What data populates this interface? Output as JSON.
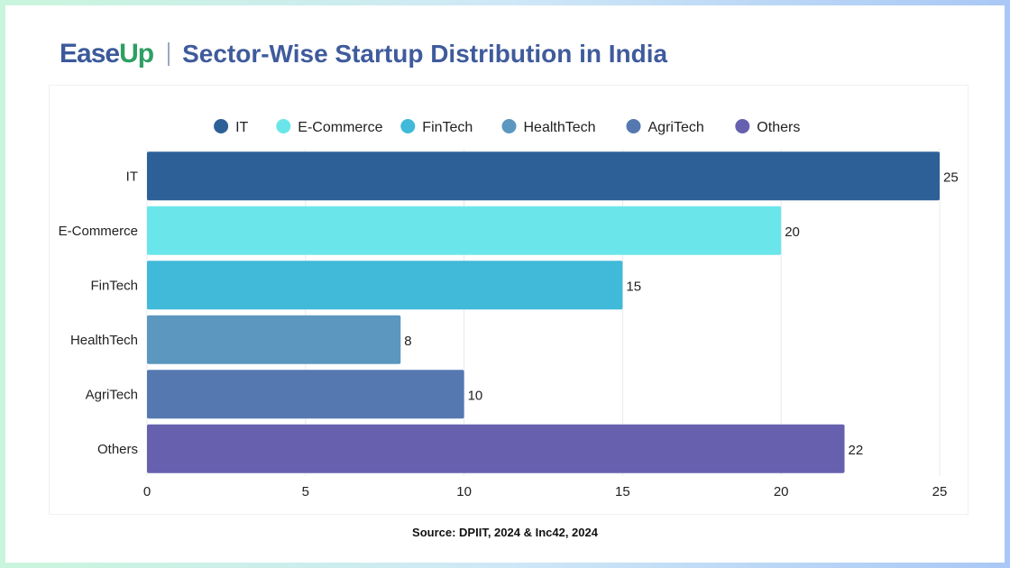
{
  "brand": {
    "logo_part1": "Ease",
    "logo_part2": "Up",
    "logo_color1": "#3b5a9a",
    "logo_color2": "#2e9f63"
  },
  "header": {
    "title": "Sector-Wise Startup Distribution in India"
  },
  "source": "Source: DPIIT, 2024 & Inc42, 2024",
  "chart_data": {
    "type": "bar",
    "orientation": "horizontal",
    "categories": [
      "IT",
      "E-Commerce",
      "FinTech",
      "HealthTech",
      "AgriTech",
      "Others"
    ],
    "values": [
      25,
      20,
      15,
      8,
      10,
      22
    ],
    "colors": [
      "#2e6098",
      "#6ae6ea",
      "#41b9d8",
      "#5b97bf",
      "#5578b0",
      "#6760ae"
    ],
    "legend": {
      "placement": "top",
      "entries": [
        "IT",
        "E-Commerce",
        "FinTech",
        "HealthTech",
        "AgriTech",
        "Others"
      ]
    },
    "xlim": [
      0,
      25
    ],
    "xticks": [
      0,
      5,
      10,
      15,
      20,
      25
    ],
    "grid": true,
    "title": "",
    "xlabel": "",
    "ylabel": ""
  }
}
